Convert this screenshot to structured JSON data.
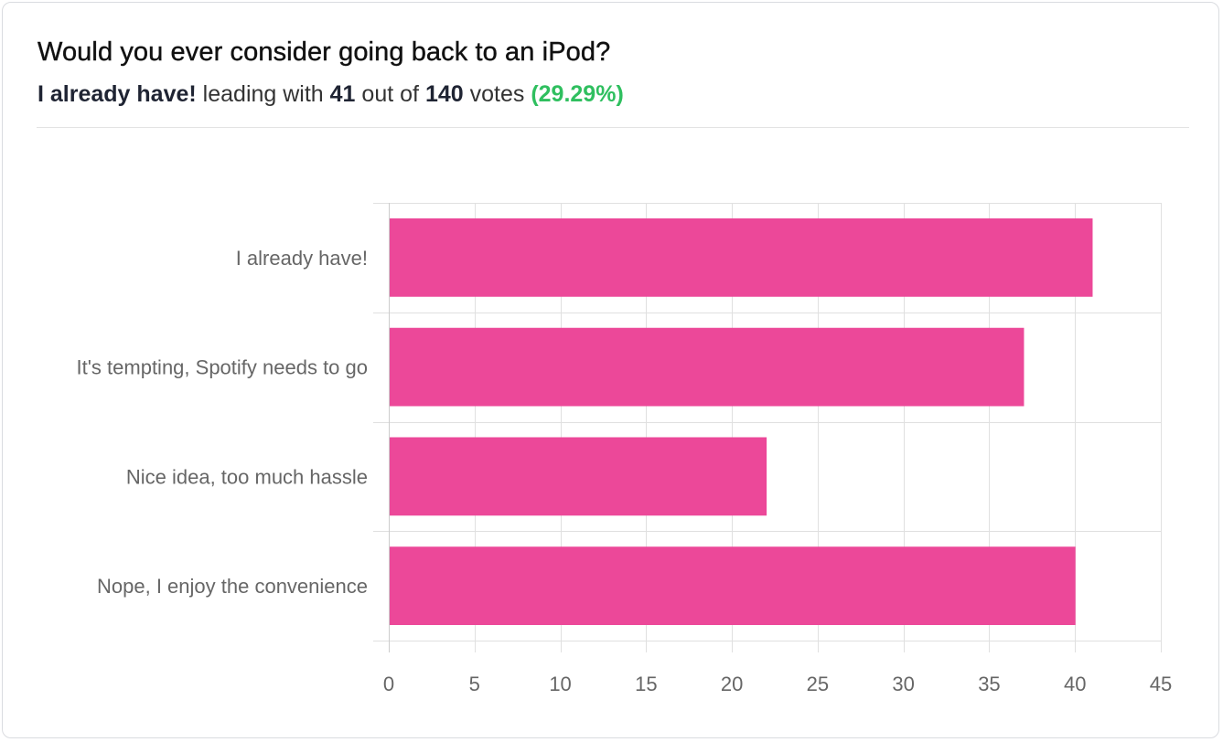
{
  "poll": {
    "title": "Would you ever consider going back to an iPod?",
    "leader": "I already have!",
    "leading_with_text": "leading with",
    "leader_votes": "41",
    "out_of_text": "out of",
    "total_votes": "140",
    "votes_text": "votes",
    "leader_percent": "(29.29%)"
  },
  "colors": {
    "bar": "#ec4899",
    "percent": "#2fbf5f",
    "grid": "#e0e0e0"
  },
  "chart_data": {
    "type": "bar",
    "orientation": "horizontal",
    "categories": [
      "I already have!",
      "It's tempting, Spotify needs to go",
      "Nice idea, too much hassle",
      "Nope, I enjoy the convenience"
    ],
    "values": [
      41,
      37,
      22,
      40
    ],
    "xlim": [
      0,
      45
    ],
    "xticks": [
      0,
      5,
      10,
      15,
      20,
      25,
      30,
      35,
      40,
      45
    ],
    "grid": true,
    "legend": "none"
  }
}
